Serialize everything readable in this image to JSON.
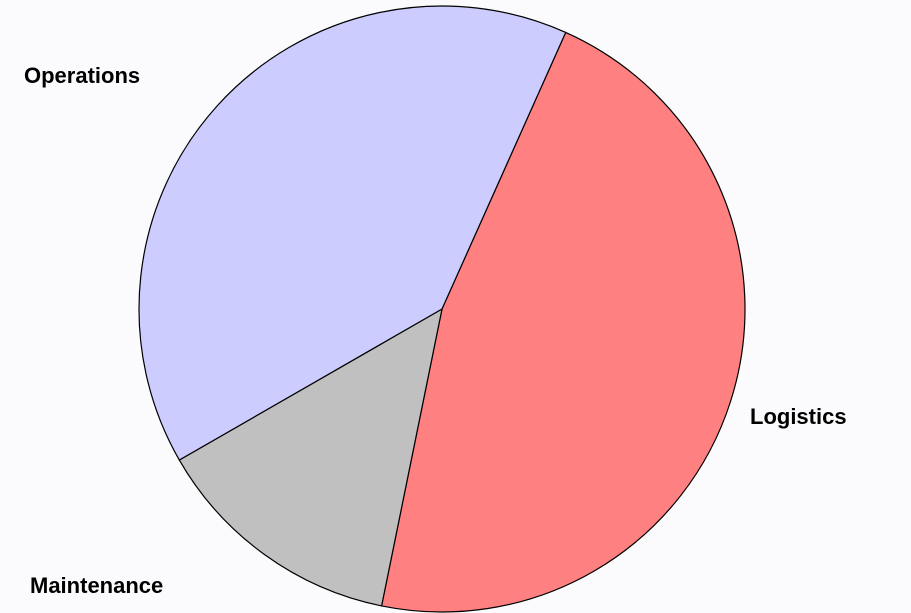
{
  "chart_data": {
    "type": "pie",
    "categories": [
      "Logistics",
      "Maintenance",
      "Operations"
    ],
    "values": [
      46.5,
      13.5,
      40
    ],
    "colors": [
      "#ff8080",
      "#c0c0c0",
      "#ccccff"
    ]
  }
}
